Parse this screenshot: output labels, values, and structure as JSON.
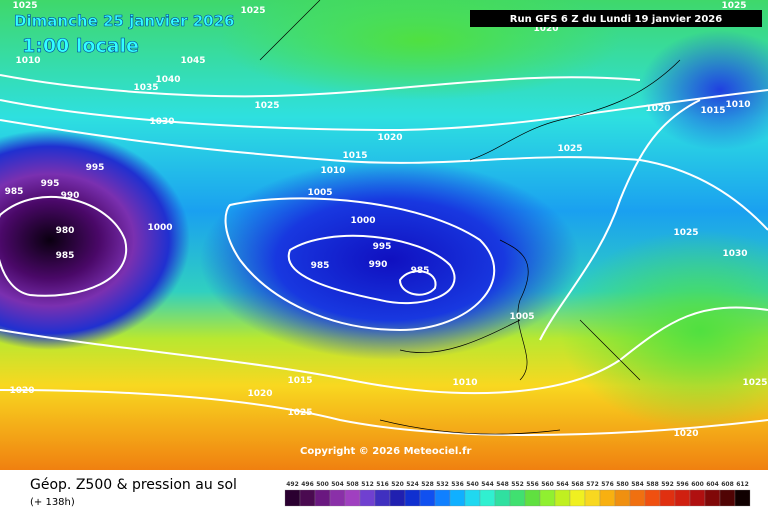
{
  "header": {
    "date": "Dimanche 25 janvier 2026",
    "time": "1:00 locale",
    "run": "Run GFS 6 Z du Lundi 19 janvier 2026"
  },
  "map": {
    "copyright": "Copyright © 2026 Meteociel.fr",
    "isobar_labels": [
      "1025",
      "1010",
      "1035",
      "1040",
      "1045",
      "1030",
      "1025",
      "1025",
      "1020",
      "1015",
      "1010",
      "1005",
      "1000",
      "995",
      "990",
      "985",
      "985",
      "1000",
      "985",
      "990",
      "980",
      "985",
      "995",
      "995",
      "1005",
      "1010",
      "1015",
      "1020",
      "1025",
      "1020",
      "1025",
      "1020",
      "1015",
      "1010",
      "1025",
      "1030",
      "1025",
      "1020",
      "1025",
      "1020"
    ]
  },
  "footer": {
    "title": "Géop. Z500 & pression au sol",
    "lead": "(+ 138h)",
    "scale": [
      "492",
      "496",
      "500",
      "504",
      "508",
      "512",
      "516",
      "520",
      "524",
      "528",
      "532",
      "536",
      "540",
      "544",
      "548",
      "552",
      "556",
      "560",
      "564",
      "568",
      "572",
      "576",
      "580",
      "584",
      "588",
      "592",
      "596",
      "600",
      "604",
      "608",
      "612"
    ]
  }
}
